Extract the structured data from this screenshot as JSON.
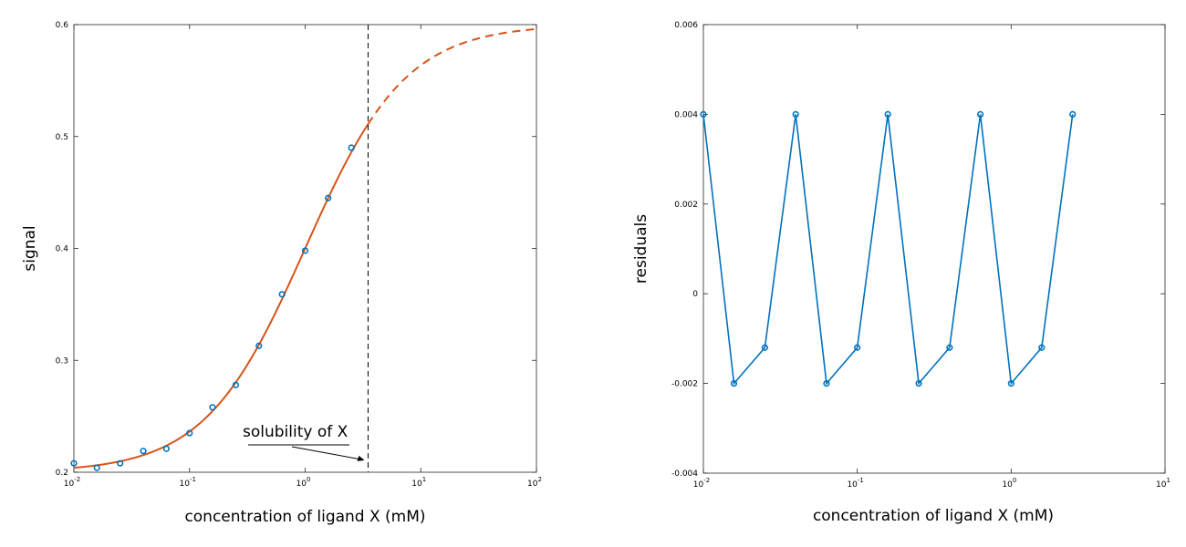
{
  "chart_data": [
    {
      "type": "scatter",
      "xlabel": "concentration of ligand X (mM)",
      "ylabel": "signal",
      "xscale": "log",
      "xlim": [
        0.01,
        100
      ],
      "ylim": [
        0.2,
        0.6
      ],
      "xticks": [
        {
          "value": 0.01,
          "base": "10",
          "exp": "-2"
        },
        {
          "value": 0.1,
          "base": "10",
          "exp": "-1"
        },
        {
          "value": 1,
          "base": "10",
          "exp": "0"
        },
        {
          "value": 10,
          "base": "10",
          "exp": "1"
        },
        {
          "value": 100,
          "base": "10",
          "exp": "2"
        }
      ],
      "yticks": [
        {
          "value": 0.2,
          "label": "0.2"
        },
        {
          "value": 0.3,
          "label": "0.3"
        },
        {
          "value": 0.4,
          "label": "0.4"
        },
        {
          "value": 0.5,
          "label": "0.5"
        },
        {
          "value": 0.6,
          "label": "0.6"
        }
      ],
      "grid": false,
      "points": {
        "color": "#0072BD",
        "x": [
          0.01,
          0.0158,
          0.0251,
          0.0398,
          0.0631,
          0.1,
          0.158,
          0.251,
          0.398,
          0.631,
          1.0,
          1.58,
          2.51
        ],
        "y": [
          0.208,
          0.204,
          0.208,
          0.219,
          0.221,
          0.235,
          0.258,
          0.278,
          0.313,
          0.359,
          0.398,
          0.445,
          0.49
        ]
      },
      "fit": {
        "color": "#D95319",
        "model": {
          "bottom": 0.2,
          "top": 0.6,
          "ec50": 1.0
        },
        "solid_range": [
          0.01,
          3.5
        ],
        "dashed_range": [
          3.5,
          100
        ]
      },
      "solubility_limit": 3.5,
      "annotation": {
        "text": "solubility of X",
        "points_to": [
          3.5,
          0.205
        ]
      }
    },
    {
      "type": "line",
      "xlabel": "concentration of ligand X (mM)",
      "ylabel": "residuals",
      "xscale": "log",
      "xlim": [
        0.01,
        10
      ],
      "ylim": [
        -0.004,
        0.006
      ],
      "xticks": [
        {
          "value": 0.01,
          "base": "10",
          "exp": "-2"
        },
        {
          "value": 0.1,
          "base": "10",
          "exp": "-1"
        },
        {
          "value": 1,
          "base": "10",
          "exp": "0"
        },
        {
          "value": 10,
          "base": "10",
          "exp": "1"
        }
      ],
      "yticks": [
        {
          "value": -0.004,
          "label": "-0.004"
        },
        {
          "value": -0.002,
          "label": "-0.002"
        },
        {
          "value": 0,
          "label": "0"
        },
        {
          "value": 0.002,
          "label": "0.002"
        },
        {
          "value": 0.004,
          "label": "0.004"
        },
        {
          "value": 0.006,
          "label": "0.006"
        }
      ],
      "grid": false,
      "series": [
        {
          "color": "#0072BD",
          "marker": "circle",
          "x": [
            0.01,
            0.0158,
            0.0251,
            0.0398,
            0.0631,
            0.1,
            0.158,
            0.251,
            0.398,
            0.631,
            1.0,
            1.58,
            2.51
          ],
          "y": [
            0.004,
            -0.002,
            -0.0012,
            0.004,
            -0.002,
            -0.0012,
            0.004,
            -0.002,
            -0.0012,
            0.004,
            -0.002,
            -0.0012,
            0.004
          ]
        }
      ]
    }
  ]
}
